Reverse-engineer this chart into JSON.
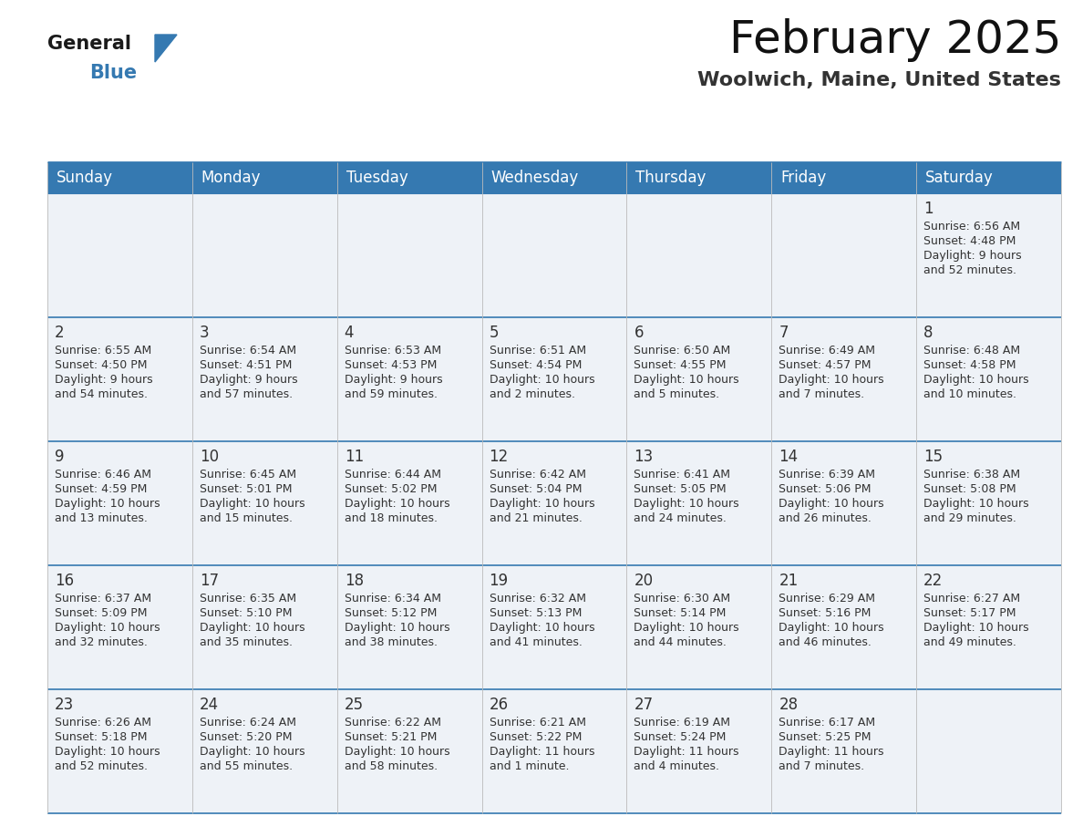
{
  "title": "February 2025",
  "subtitle": "Woolwich, Maine, United States",
  "header_color": "#3579b1",
  "header_text_color": "#ffffff",
  "cell_bg_light": "#eef2f7",
  "border_color": "#3579b1",
  "border_color_light": "#bbbbbb",
  "text_color": "#333333",
  "days_of_week": [
    "Sunday",
    "Monday",
    "Tuesday",
    "Wednesday",
    "Thursday",
    "Friday",
    "Saturday"
  ],
  "weeks": [
    [
      {
        "day": null,
        "info": null
      },
      {
        "day": null,
        "info": null
      },
      {
        "day": null,
        "info": null
      },
      {
        "day": null,
        "info": null
      },
      {
        "day": null,
        "info": null
      },
      {
        "day": null,
        "info": null
      },
      {
        "day": "1",
        "info": "Sunrise: 6:56 AM\nSunset: 4:48 PM\nDaylight: 9 hours\nand 52 minutes."
      }
    ],
    [
      {
        "day": "2",
        "info": "Sunrise: 6:55 AM\nSunset: 4:50 PM\nDaylight: 9 hours\nand 54 minutes."
      },
      {
        "day": "3",
        "info": "Sunrise: 6:54 AM\nSunset: 4:51 PM\nDaylight: 9 hours\nand 57 minutes."
      },
      {
        "day": "4",
        "info": "Sunrise: 6:53 AM\nSunset: 4:53 PM\nDaylight: 9 hours\nand 59 minutes."
      },
      {
        "day": "5",
        "info": "Sunrise: 6:51 AM\nSunset: 4:54 PM\nDaylight: 10 hours\nand 2 minutes."
      },
      {
        "day": "6",
        "info": "Sunrise: 6:50 AM\nSunset: 4:55 PM\nDaylight: 10 hours\nand 5 minutes."
      },
      {
        "day": "7",
        "info": "Sunrise: 6:49 AM\nSunset: 4:57 PM\nDaylight: 10 hours\nand 7 minutes."
      },
      {
        "day": "8",
        "info": "Sunrise: 6:48 AM\nSunset: 4:58 PM\nDaylight: 10 hours\nand 10 minutes."
      }
    ],
    [
      {
        "day": "9",
        "info": "Sunrise: 6:46 AM\nSunset: 4:59 PM\nDaylight: 10 hours\nand 13 minutes."
      },
      {
        "day": "10",
        "info": "Sunrise: 6:45 AM\nSunset: 5:01 PM\nDaylight: 10 hours\nand 15 minutes."
      },
      {
        "day": "11",
        "info": "Sunrise: 6:44 AM\nSunset: 5:02 PM\nDaylight: 10 hours\nand 18 minutes."
      },
      {
        "day": "12",
        "info": "Sunrise: 6:42 AM\nSunset: 5:04 PM\nDaylight: 10 hours\nand 21 minutes."
      },
      {
        "day": "13",
        "info": "Sunrise: 6:41 AM\nSunset: 5:05 PM\nDaylight: 10 hours\nand 24 minutes."
      },
      {
        "day": "14",
        "info": "Sunrise: 6:39 AM\nSunset: 5:06 PM\nDaylight: 10 hours\nand 26 minutes."
      },
      {
        "day": "15",
        "info": "Sunrise: 6:38 AM\nSunset: 5:08 PM\nDaylight: 10 hours\nand 29 minutes."
      }
    ],
    [
      {
        "day": "16",
        "info": "Sunrise: 6:37 AM\nSunset: 5:09 PM\nDaylight: 10 hours\nand 32 minutes."
      },
      {
        "day": "17",
        "info": "Sunrise: 6:35 AM\nSunset: 5:10 PM\nDaylight: 10 hours\nand 35 minutes."
      },
      {
        "day": "18",
        "info": "Sunrise: 6:34 AM\nSunset: 5:12 PM\nDaylight: 10 hours\nand 38 minutes."
      },
      {
        "day": "19",
        "info": "Sunrise: 6:32 AM\nSunset: 5:13 PM\nDaylight: 10 hours\nand 41 minutes."
      },
      {
        "day": "20",
        "info": "Sunrise: 6:30 AM\nSunset: 5:14 PM\nDaylight: 10 hours\nand 44 minutes."
      },
      {
        "day": "21",
        "info": "Sunrise: 6:29 AM\nSunset: 5:16 PM\nDaylight: 10 hours\nand 46 minutes."
      },
      {
        "day": "22",
        "info": "Sunrise: 6:27 AM\nSunset: 5:17 PM\nDaylight: 10 hours\nand 49 minutes."
      }
    ],
    [
      {
        "day": "23",
        "info": "Sunrise: 6:26 AM\nSunset: 5:18 PM\nDaylight: 10 hours\nand 52 minutes."
      },
      {
        "day": "24",
        "info": "Sunrise: 6:24 AM\nSunset: 5:20 PM\nDaylight: 10 hours\nand 55 minutes."
      },
      {
        "day": "25",
        "info": "Sunrise: 6:22 AM\nSunset: 5:21 PM\nDaylight: 10 hours\nand 58 minutes."
      },
      {
        "day": "26",
        "info": "Sunrise: 6:21 AM\nSunset: 5:22 PM\nDaylight: 11 hours\nand 1 minute."
      },
      {
        "day": "27",
        "info": "Sunrise: 6:19 AM\nSunset: 5:24 PM\nDaylight: 11 hours\nand 4 minutes."
      },
      {
        "day": "28",
        "info": "Sunrise: 6:17 AM\nSunset: 5:25 PM\nDaylight: 11 hours\nand 7 minutes."
      },
      {
        "day": null,
        "info": null
      }
    ]
  ],
  "title_fontsize": 36,
  "subtitle_fontsize": 16,
  "header_fontsize": 12,
  "day_number_fontsize": 12,
  "info_fontsize": 9,
  "logo_general_fontsize": 15,
  "logo_blue_fontsize": 15
}
